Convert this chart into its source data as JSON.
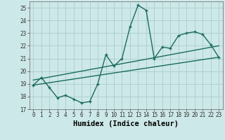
{
  "xlabel": "Humidex (Indice chaleur)",
  "background_color": "#cde8e8",
  "grid_color": "#b0d0d0",
  "line_color": "#1a6b5e",
  "xlim": [
    -0.5,
    23.5
  ],
  "ylim": [
    17,
    25.5
  ],
  "yticks": [
    17,
    18,
    19,
    20,
    21,
    22,
    23,
    24,
    25
  ],
  "xticks": [
    0,
    1,
    2,
    3,
    4,
    5,
    6,
    7,
    8,
    9,
    10,
    11,
    12,
    13,
    14,
    15,
    16,
    17,
    18,
    19,
    20,
    21,
    22,
    23
  ],
  "series1_x": [
    0,
    1,
    2,
    3,
    4,
    5,
    6,
    7,
    8,
    9,
    10,
    11,
    12,
    13,
    14,
    15,
    16,
    17,
    18,
    19,
    20,
    21,
    22,
    23
  ],
  "series1_y": [
    18.9,
    19.5,
    18.7,
    17.9,
    18.1,
    17.8,
    17.5,
    17.6,
    19.0,
    21.3,
    20.4,
    21.0,
    23.5,
    25.2,
    24.8,
    21.0,
    21.9,
    21.8,
    22.8,
    23.0,
    23.1,
    22.9,
    22.1,
    21.1
  ],
  "series2_x": [
    0,
    23
  ],
  "series2_y": [
    18.9,
    21.1
  ],
  "series3_x": [
    0,
    23
  ],
  "series3_y": [
    19.3,
    22.0
  ],
  "tick_fontsize": 5.5,
  "label_fontsize": 7.5
}
